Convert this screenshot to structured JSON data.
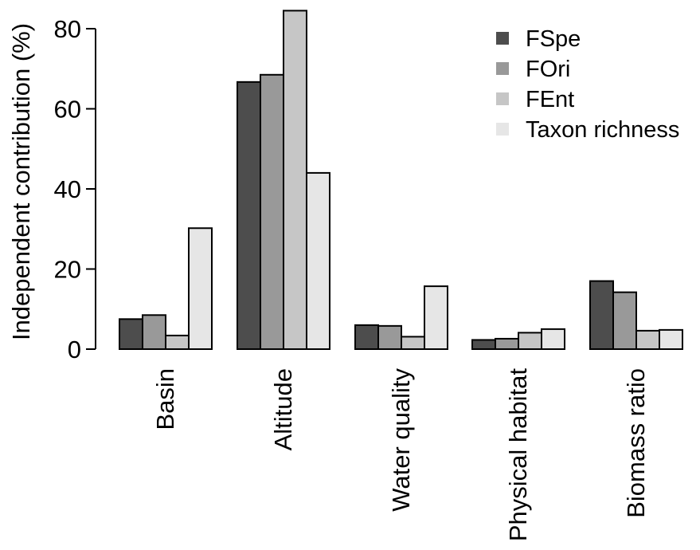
{
  "chart_data": {
    "type": "bar",
    "title": "",
    "xlabel": "",
    "ylabel": "Independent contribution (%)",
    "categories": [
      "Basin",
      "Altitude",
      "Water quality",
      "Physical habitat",
      "Biomass ratio"
    ],
    "series": [
      {
        "name": "FSpe",
        "color": "#4d4d4d",
        "values": [
          7.5,
          66.7,
          6.0,
          2.3,
          17.0
        ]
      },
      {
        "name": "FOri",
        "color": "#999999",
        "values": [
          8.5,
          68.5,
          5.8,
          2.6,
          14.2
        ]
      },
      {
        "name": "FEnt",
        "color": "#c6c6c6",
        "values": [
          3.4,
          84.5,
          3.1,
          4.1,
          4.6
        ]
      },
      {
        "name": "Taxon richness",
        "color": "#e6e6e6",
        "values": [
          30.2,
          44.0,
          15.7,
          5.0,
          4.8
        ]
      }
    ],
    "y_ticks": [
      0,
      20,
      40,
      60,
      80
    ],
    "ylim": [
      0,
      85
    ],
    "grid": false,
    "legend_position": "top-right"
  }
}
